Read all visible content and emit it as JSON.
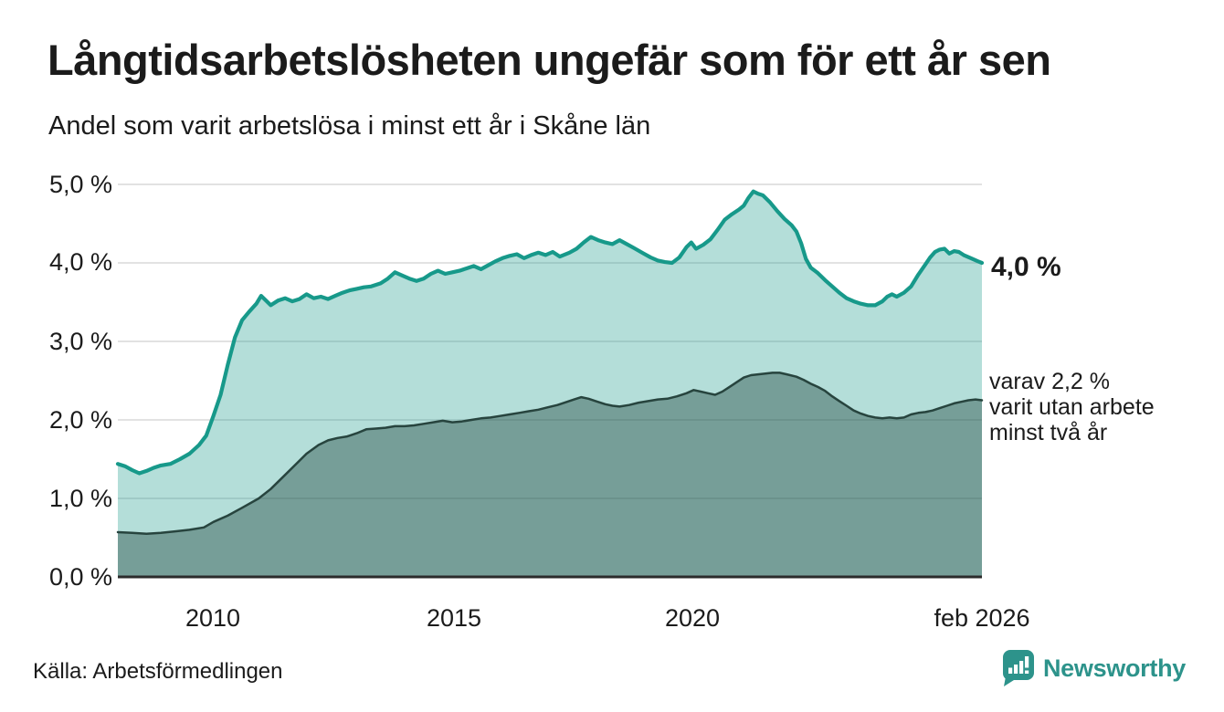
{
  "header": {
    "title": "Långtidsarbetslösheten ungefär som för ett år sen",
    "subtitle": "Andel som varit arbetslösa i minst ett år i Skåne län"
  },
  "chart_data": {
    "type": "area",
    "title": "Långtidsarbetslösheten ungefär som för ett år sen",
    "subtitle": "Andel som varit arbetslösa i minst ett år i Skåne län",
    "xlabel": "",
    "ylabel": "",
    "x_domain": [
      2008.0,
      2026.083
    ],
    "y_domain": [
      0,
      5
    ],
    "grid": true,
    "legend": "none",
    "y_ticks": [
      {
        "value": 0,
        "label": "0,0 %"
      },
      {
        "value": 1,
        "label": "1,0 %"
      },
      {
        "value": 2,
        "label": "2,0 %"
      },
      {
        "value": 3,
        "label": "3,0 %"
      },
      {
        "value": 4,
        "label": "4,0 %"
      },
      {
        "value": 5,
        "label": "5,0 %"
      }
    ],
    "x_ticks": [
      {
        "value": 2010,
        "label": "2010"
      },
      {
        "value": 2015,
        "label": "2015"
      },
      {
        "value": 2020,
        "label": "2020"
      },
      {
        "value": 2026.083,
        "label": "feb 2026"
      }
    ],
    "colors": {
      "grid": "#d9d9d9",
      "axis": "#2b2b2b"
    },
    "series": [
      {
        "name": "arbetslosa-minst-ett-ar",
        "end_label": "4,0 %",
        "end_value": 4.0,
        "line_color": "#17998a",
        "fill_color": "rgba(26,155,139,0.33)",
        "line_width": 4.2,
        "points": [
          [
            2008.0,
            1.44
          ],
          [
            2008.15,
            1.41
          ],
          [
            2008.3,
            1.36
          ],
          [
            2008.45,
            1.32
          ],
          [
            2008.6,
            1.35
          ],
          [
            2008.75,
            1.39
          ],
          [
            2008.9,
            1.42
          ],
          [
            2009.1,
            1.44
          ],
          [
            2009.3,
            1.5
          ],
          [
            2009.5,
            1.57
          ],
          [
            2009.7,
            1.68
          ],
          [
            2009.85,
            1.8
          ],
          [
            2010.0,
            2.05
          ],
          [
            2010.15,
            2.32
          ],
          [
            2010.3,
            2.7
          ],
          [
            2010.45,
            3.05
          ],
          [
            2010.6,
            3.27
          ],
          [
            2010.75,
            3.38
          ],
          [
            2010.9,
            3.48
          ],
          [
            2011.0,
            3.58
          ],
          [
            2011.1,
            3.52
          ],
          [
            2011.2,
            3.46
          ],
          [
            2011.35,
            3.52
          ],
          [
            2011.5,
            3.55
          ],
          [
            2011.65,
            3.51
          ],
          [
            2011.8,
            3.54
          ],
          [
            2011.95,
            3.6
          ],
          [
            2012.1,
            3.55
          ],
          [
            2012.25,
            3.57
          ],
          [
            2012.4,
            3.54
          ],
          [
            2012.55,
            3.58
          ],
          [
            2012.7,
            3.62
          ],
          [
            2012.85,
            3.65
          ],
          [
            2013.0,
            3.67
          ],
          [
            2013.15,
            3.69
          ],
          [
            2013.3,
            3.7
          ],
          [
            2013.5,
            3.74
          ],
          [
            2013.65,
            3.8
          ],
          [
            2013.8,
            3.88
          ],
          [
            2013.95,
            3.84
          ],
          [
            2014.1,
            3.8
          ],
          [
            2014.25,
            3.77
          ],
          [
            2014.4,
            3.8
          ],
          [
            2014.55,
            3.86
          ],
          [
            2014.7,
            3.9
          ],
          [
            2014.85,
            3.86
          ],
          [
            2015.0,
            3.88
          ],
          [
            2015.15,
            3.9
          ],
          [
            2015.3,
            3.93
          ],
          [
            2015.45,
            3.96
          ],
          [
            2015.6,
            3.92
          ],
          [
            2015.75,
            3.97
          ],
          [
            2015.9,
            4.02
          ],
          [
            2016.05,
            4.06
          ],
          [
            2016.2,
            4.09
          ],
          [
            2016.35,
            4.11
          ],
          [
            2016.5,
            4.06
          ],
          [
            2016.65,
            4.1
          ],
          [
            2016.8,
            4.13
          ],
          [
            2016.95,
            4.1
          ],
          [
            2017.1,
            4.14
          ],
          [
            2017.25,
            4.08
          ],
          [
            2017.45,
            4.13
          ],
          [
            2017.6,
            4.18
          ],
          [
            2017.75,
            4.26
          ],
          [
            2017.9,
            4.33
          ],
          [
            2018.05,
            4.29
          ],
          [
            2018.2,
            4.26
          ],
          [
            2018.35,
            4.24
          ],
          [
            2018.5,
            4.29
          ],
          [
            2018.65,
            4.24
          ],
          [
            2018.8,
            4.19
          ],
          [
            2019.0,
            4.12
          ],
          [
            2019.15,
            4.07
          ],
          [
            2019.3,
            4.03
          ],
          [
            2019.45,
            4.01
          ],
          [
            2019.6,
            4.0
          ],
          [
            2019.75,
            4.07
          ],
          [
            2019.9,
            4.2
          ],
          [
            2020.0,
            4.26
          ],
          [
            2020.1,
            4.18
          ],
          [
            2020.25,
            4.23
          ],
          [
            2020.4,
            4.3
          ],
          [
            2020.55,
            4.42
          ],
          [
            2020.7,
            4.55
          ],
          [
            2020.85,
            4.62
          ],
          [
            2021.0,
            4.68
          ],
          [
            2021.1,
            4.73
          ],
          [
            2021.2,
            4.83
          ],
          [
            2021.3,
            4.91
          ],
          [
            2021.4,
            4.88
          ],
          [
            2021.5,
            4.86
          ],
          [
            2021.65,
            4.77
          ],
          [
            2021.8,
            4.66
          ],
          [
            2021.95,
            4.56
          ],
          [
            2022.1,
            4.48
          ],
          [
            2022.2,
            4.4
          ],
          [
            2022.3,
            4.25
          ],
          [
            2022.4,
            4.05
          ],
          [
            2022.5,
            3.94
          ],
          [
            2022.65,
            3.87
          ],
          [
            2022.8,
            3.78
          ],
          [
            2022.95,
            3.7
          ],
          [
            2023.1,
            3.62
          ],
          [
            2023.25,
            3.55
          ],
          [
            2023.4,
            3.51
          ],
          [
            2023.55,
            3.48
          ],
          [
            2023.7,
            3.46
          ],
          [
            2023.85,
            3.46
          ],
          [
            2024.0,
            3.51
          ],
          [
            2024.1,
            3.57
          ],
          [
            2024.2,
            3.6
          ],
          [
            2024.3,
            3.57
          ],
          [
            2024.45,
            3.62
          ],
          [
            2024.6,
            3.7
          ],
          [
            2024.75,
            3.85
          ],
          [
            2024.9,
            3.98
          ],
          [
            2025.0,
            4.07
          ],
          [
            2025.1,
            4.14
          ],
          [
            2025.2,
            4.17
          ],
          [
            2025.3,
            4.18
          ],
          [
            2025.4,
            4.12
          ],
          [
            2025.5,
            4.15
          ],
          [
            2025.6,
            4.14
          ],
          [
            2025.7,
            4.1
          ],
          [
            2025.85,
            4.06
          ],
          [
            2026.0,
            4.02
          ],
          [
            2026.083,
            4.0
          ]
        ]
      },
      {
        "name": "varav-utan-arbete-minst-tva-ar",
        "annotation_lines": [
          "varav 2,2 %",
          "varit utan arbete",
          "minst två år"
        ],
        "end_value": 2.2,
        "line_color": "#27443e",
        "fill_color": "rgba(33,68,61,0.42)",
        "line_width": 2.5,
        "points": [
          [
            2008.0,
            0.57
          ],
          [
            2008.3,
            0.56
          ],
          [
            2008.6,
            0.55
          ],
          [
            2008.9,
            0.56
          ],
          [
            2009.2,
            0.58
          ],
          [
            2009.5,
            0.6
          ],
          [
            2009.8,
            0.63
          ],
          [
            2010.0,
            0.7
          ],
          [
            2010.3,
            0.78
          ],
          [
            2010.6,
            0.88
          ],
          [
            2010.95,
            1.0
          ],
          [
            2011.2,
            1.12
          ],
          [
            2011.45,
            1.27
          ],
          [
            2011.7,
            1.42
          ],
          [
            2011.95,
            1.57
          ],
          [
            2012.2,
            1.68
          ],
          [
            2012.4,
            1.74
          ],
          [
            2012.6,
            1.77
          ],
          [
            2012.8,
            1.79
          ],
          [
            2013.0,
            1.83
          ],
          [
            2013.2,
            1.88
          ],
          [
            2013.4,
            1.89
          ],
          [
            2013.6,
            1.9
          ],
          [
            2013.8,
            1.92
          ],
          [
            2014.0,
            1.92
          ],
          [
            2014.2,
            1.93
          ],
          [
            2014.4,
            1.95
          ],
          [
            2014.6,
            1.97
          ],
          [
            2014.8,
            1.99
          ],
          [
            2015.0,
            1.97
          ],
          [
            2015.2,
            1.98
          ],
          [
            2015.4,
            2.0
          ],
          [
            2015.6,
            2.02
          ],
          [
            2015.8,
            2.03
          ],
          [
            2016.0,
            2.05
          ],
          [
            2016.2,
            2.07
          ],
          [
            2016.4,
            2.09
          ],
          [
            2016.6,
            2.11
          ],
          [
            2016.8,
            2.13
          ],
          [
            2017.0,
            2.16
          ],
          [
            2017.2,
            2.19
          ],
          [
            2017.4,
            2.23
          ],
          [
            2017.55,
            2.26
          ],
          [
            2017.7,
            2.29
          ],
          [
            2017.85,
            2.27
          ],
          [
            2018.0,
            2.24
          ],
          [
            2018.2,
            2.2
          ],
          [
            2018.35,
            2.18
          ],
          [
            2018.5,
            2.17
          ],
          [
            2018.7,
            2.19
          ],
          [
            2018.9,
            2.22
          ],
          [
            2019.1,
            2.24
          ],
          [
            2019.3,
            2.26
          ],
          [
            2019.5,
            2.27
          ],
          [
            2019.7,
            2.3
          ],
          [
            2019.9,
            2.34
          ],
          [
            2020.05,
            2.38
          ],
          [
            2020.2,
            2.36
          ],
          [
            2020.35,
            2.34
          ],
          [
            2020.5,
            2.32
          ],
          [
            2020.65,
            2.36
          ],
          [
            2020.8,
            2.42
          ],
          [
            2020.95,
            2.48
          ],
          [
            2021.1,
            2.54
          ],
          [
            2021.25,
            2.57
          ],
          [
            2021.4,
            2.58
          ],
          [
            2021.55,
            2.59
          ],
          [
            2021.7,
            2.6
          ],
          [
            2021.85,
            2.6
          ],
          [
            2022.0,
            2.58
          ],
          [
            2022.2,
            2.55
          ],
          [
            2022.35,
            2.51
          ],
          [
            2022.5,
            2.46
          ],
          [
            2022.65,
            2.42
          ],
          [
            2022.8,
            2.37
          ],
          [
            2022.95,
            2.3
          ],
          [
            2023.1,
            2.24
          ],
          [
            2023.25,
            2.18
          ],
          [
            2023.4,
            2.12
          ],
          [
            2023.55,
            2.08
          ],
          [
            2023.7,
            2.05
          ],
          [
            2023.85,
            2.03
          ],
          [
            2024.0,
            2.02
          ],
          [
            2024.15,
            2.03
          ],
          [
            2024.3,
            2.02
          ],
          [
            2024.45,
            2.03
          ],
          [
            2024.6,
            2.07
          ],
          [
            2024.75,
            2.09
          ],
          [
            2024.9,
            2.1
          ],
          [
            2025.05,
            2.12
          ],
          [
            2025.2,
            2.15
          ],
          [
            2025.35,
            2.18
          ],
          [
            2025.5,
            2.21
          ],
          [
            2025.65,
            2.23
          ],
          [
            2025.8,
            2.25
          ],
          [
            2025.95,
            2.26
          ],
          [
            2026.083,
            2.25
          ]
        ]
      }
    ]
  },
  "footer": {
    "source": "Källa: Arbetsförmedlingen",
    "brand": "Newsworthy",
    "brand_color": "#2d938b"
  }
}
